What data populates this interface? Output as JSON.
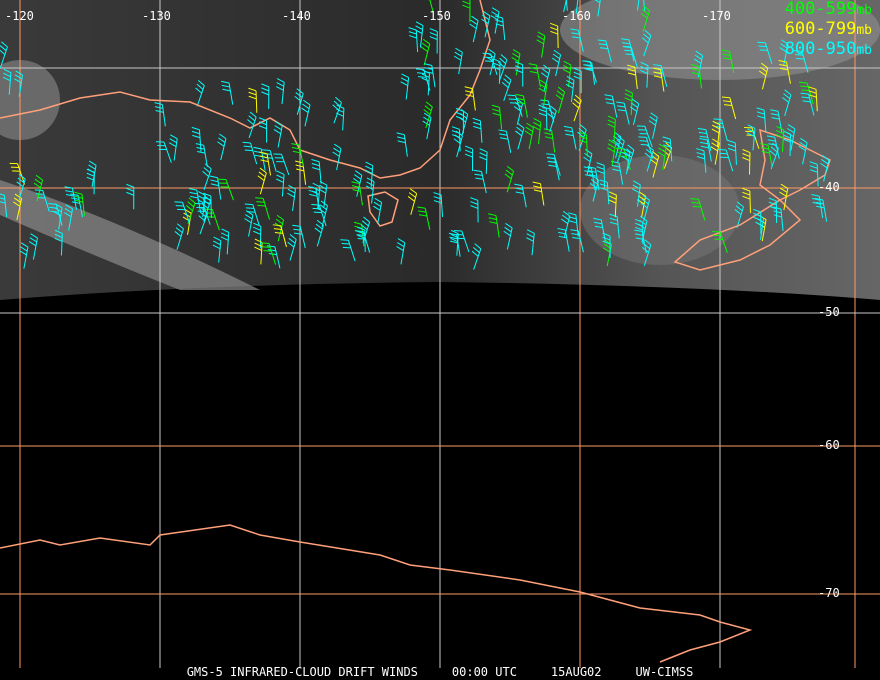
{
  "longitude_labels": [
    "-120",
    "-130",
    "-140",
    "-150",
    "-160",
    "-170"
  ],
  "latitude_labels": [
    "-40",
    "-50",
    "-60",
    "-70"
  ],
  "legend": [
    {
      "range": "400-599",
      "unit": "mb",
      "color": "#00ff00"
    },
    {
      "range": "600-799",
      "unit": "mb",
      "color": "#ffff00"
    },
    {
      "range": "800-950",
      "unit": "mb",
      "color": "#00ffff"
    }
  ],
  "caption": {
    "product": "GMS-5 INFRARED-CLOUD DRIFT WINDS",
    "time": "00:00 UTC",
    "date": "15AUG02",
    "source": "UW-CIMSS"
  },
  "colors": {
    "coastline": "#ffa07a",
    "grid_white": "#c8c8c8",
    "grid_orange": "#ff9966"
  }
}
